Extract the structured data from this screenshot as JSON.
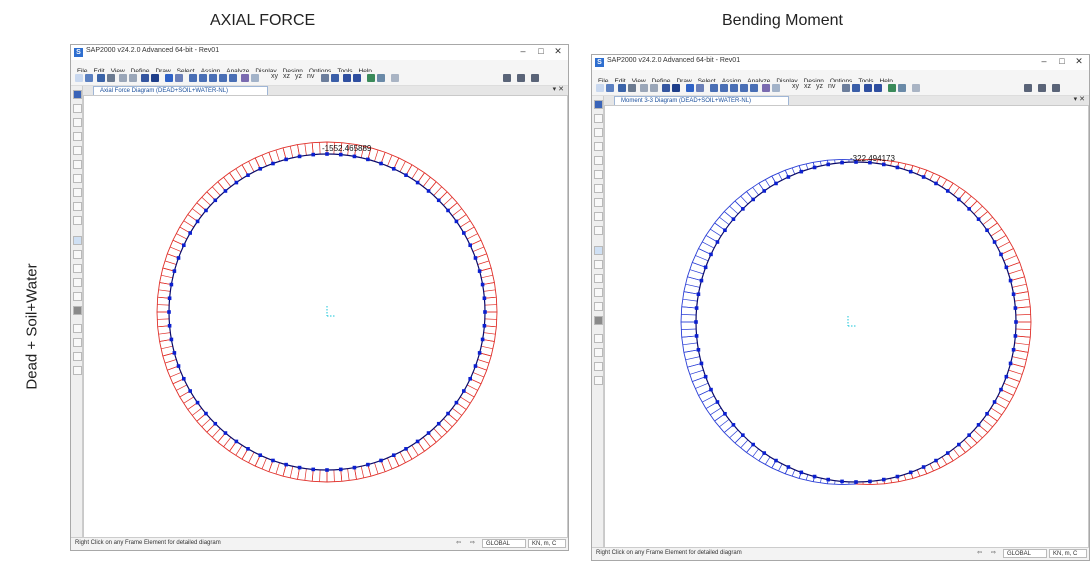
{
  "captions": {
    "left_title": "AXIAL FORCE",
    "right_title": "Bending Moment",
    "row_label": "Dead + Soil+Water"
  },
  "windows": [
    {
      "app_title": "SAP2000 v24.2.0 Advanced 64-bit - Rev01",
      "tab_title": "Axial Force Diagram (DEAD+SOIL+WATER-NL)",
      "diagram_label": "-1552.465889",
      "status_text": "Right Click on any Frame Element for detailed diagram",
      "coord_system": "GLOBAL",
      "units": "KN, m, C"
    },
    {
      "app_title": "SAP2000 v24.2.0 Advanced 64-bit - Rev01",
      "tab_title": "Moment 3-3 Diagram (DEAD+SOIL+WATER-NL)",
      "diagram_label": "-322.494173",
      "status_text": "Right Click on any Frame Element for detailed diagram",
      "coord_system": "GLOBAL",
      "units": "KN, m, C"
    }
  ],
  "menu_items": [
    "File",
    "Edit",
    "View",
    "Define",
    "Draw",
    "Select",
    "Assign",
    "Analyze",
    "Display",
    "Design",
    "Options",
    "Tools",
    "Help"
  ],
  "toolbar_text": [
    "xy",
    "xz",
    "yz",
    "nv"
  ],
  "colors": {
    "negative_diagram": "#e0302a",
    "positive_diagram": "#2b3fd6",
    "frame_line": "#0a0a6a",
    "joint": "#0b1fd0",
    "axes": "#17c6d9"
  }
}
